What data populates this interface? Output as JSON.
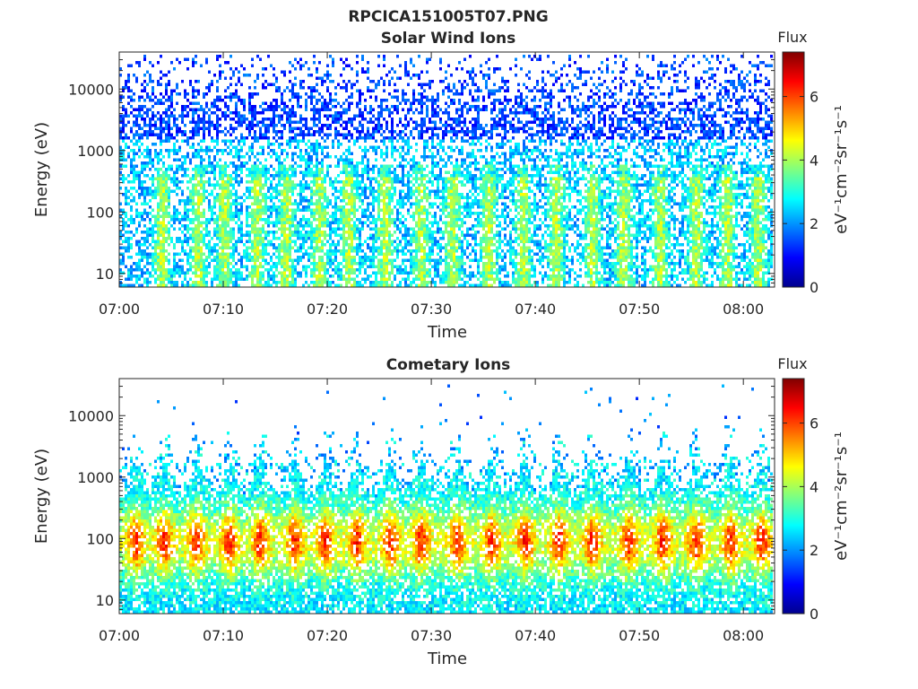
{
  "figure": {
    "title": "RPCICA151005T07.PNG"
  },
  "colors": {
    "axis": "#262626",
    "background": "#ffffff"
  },
  "chart_data": [
    {
      "type": "heatmap",
      "title": "Solar Wind Ions",
      "xlabel": "Time",
      "ylabel": "Energy (eV)",
      "x_ticks": [
        "07:00",
        "07:10",
        "07:20",
        "07:30",
        "07:40",
        "07:50",
        "08:00"
      ],
      "x_range": [
        "07:00",
        "08:03"
      ],
      "y_scale": "log",
      "y_ticks": [
        10,
        100,
        1000,
        10000
      ],
      "y_tick_labels": [
        "10",
        "100",
        "1000",
        "10000"
      ],
      "y_range": [
        6,
        40000
      ],
      "colorbar": {
        "title": "Flux",
        "label": "eV⁻¹cm⁻²sr⁻¹s⁻¹",
        "ticks": [
          0,
          2,
          4,
          6
        ],
        "tick_labels": [
          "0",
          "2",
          "4",
          "6"
        ],
        "range": [
          0,
          7.4
        ],
        "colormap": "jet"
      },
      "pattern": {
        "seed": 11,
        "bursts": [
          4.0,
          7.5,
          10.0,
          13.2,
          16.0,
          19.2,
          22.0,
          25.5,
          29.0,
          32.0,
          35.5,
          38.8,
          42.0,
          45.5,
          48.5,
          52.0,
          55.5,
          58.5,
          61.5
        ],
        "base_level": 2.3,
        "burst_level": 4.0,
        "high_energy_level": 1.4
      }
    },
    {
      "type": "heatmap",
      "title": "Cometary Ions",
      "xlabel": "Time",
      "ylabel": "Energy (eV)",
      "x_ticks": [
        "07:00",
        "07:10",
        "07:20",
        "07:30",
        "07:40",
        "07:50",
        "08:00"
      ],
      "x_range": [
        "07:00",
        "08:03"
      ],
      "y_scale": "log",
      "y_ticks": [
        10,
        100,
        1000,
        10000
      ],
      "y_tick_labels": [
        "10",
        "100",
        "1000",
        "10000"
      ],
      "y_range": [
        6,
        40000
      ],
      "colorbar": {
        "title": "Flux",
        "label": "eV⁻¹cm⁻²sr⁻¹s⁻¹",
        "ticks": [
          0,
          2,
          4,
          6
        ],
        "tick_labels": [
          "0",
          "2",
          "4",
          "6"
        ],
        "range": [
          0,
          7.4
        ],
        "colormap": "jet"
      },
      "pattern": {
        "seed": 29,
        "bursts": [
          1.5,
          4.2,
          7.3,
          10.5,
          13.5,
          16.8,
          19.8,
          22.8,
          26.0,
          29.0,
          32.5,
          35.8,
          39.0,
          42.3,
          45.5,
          49.0,
          52.3,
          55.5,
          58.8,
          61.8
        ],
        "base_level": 4.3,
        "burst_level": 6.2,
        "band_center_ev": 90
      }
    }
  ]
}
